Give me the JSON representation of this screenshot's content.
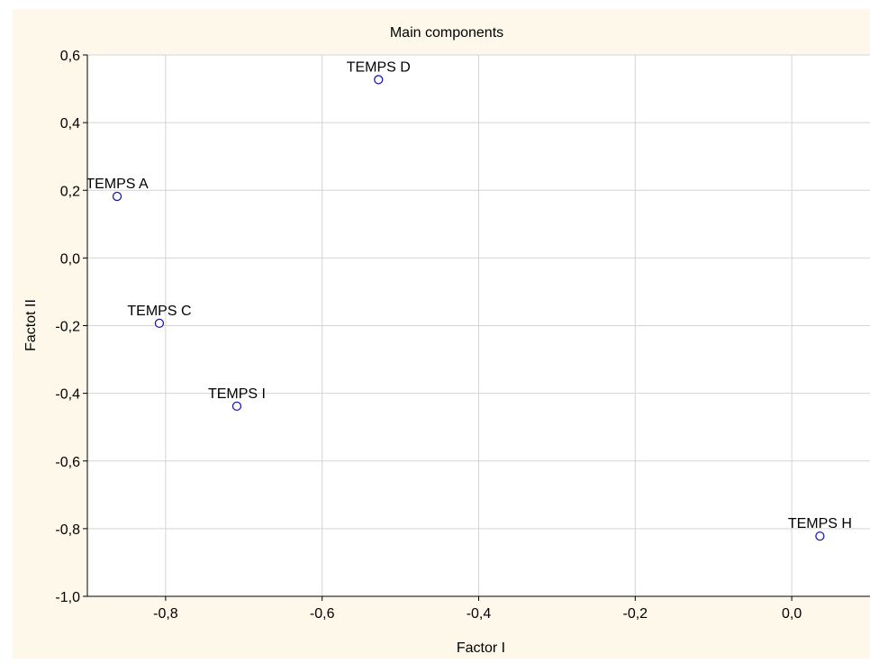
{
  "chart_data": {
    "type": "scatter",
    "title": "Main components",
    "xlabel": "Factor I",
    "ylabel": "Factot II",
    "xlim": [
      -0.9,
      0.1
    ],
    "ylim": [
      -1.0,
      0.6
    ],
    "x_ticks": [
      -0.8,
      -0.6,
      -0.4,
      -0.2,
      0.0
    ],
    "x_tick_labels": [
      "-0,8",
      "-0,6",
      "-0,4",
      "-0,2",
      "0,0"
    ],
    "y_ticks": [
      -1.0,
      -0.8,
      -0.6,
      -0.4,
      -0.2,
      0.0,
      0.2,
      0.4,
      0.6
    ],
    "y_tick_labels": [
      "-1,0",
      "-0,8",
      "-0,6",
      "-0,4",
      "-0,2",
      "0,0",
      "0,2",
      "0,4",
      "0,6"
    ],
    "grid": true,
    "points": [
      {
        "label": "TEMPS A",
        "x": -0.862,
        "y": 0.182
      },
      {
        "label": "TEMPS D",
        "x": -0.528,
        "y": 0.527
      },
      {
        "label": "TEMPS C",
        "x": -0.808,
        "y": -0.193
      },
      {
        "label": "TEMPS I",
        "x": -0.709,
        "y": -0.438
      },
      {
        "label": "TEMPS H",
        "x": 0.036,
        "y": -0.822
      }
    ]
  },
  "colors": {
    "background": "#fdf8ea",
    "plot_area": "#ffffff",
    "grid": "#d4d4d4",
    "marker": "#1a1aa8",
    "axis": "#000000"
  }
}
